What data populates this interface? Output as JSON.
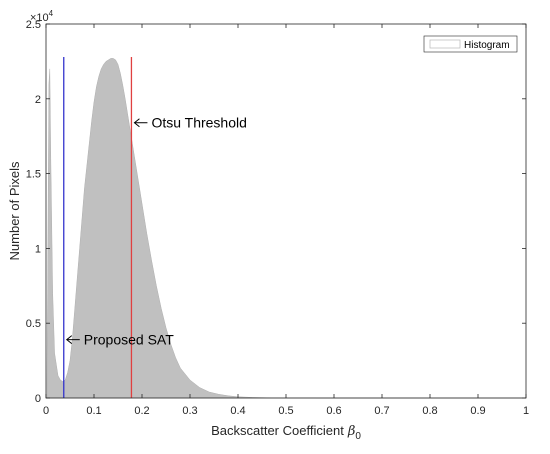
{
  "chart_data": {
    "type": "bar",
    "xlabel": "Backscatter Coefficient",
    "xlabel_symbol": "β",
    "xlabel_subscript": "0",
    "ylabel": "Number of Pixels",
    "y_exponent_base": "×10",
    "y_exponent_power": "4",
    "xlim": [
      0,
      1
    ],
    "ylim": [
      0,
      25000
    ],
    "x_ticks": [
      0,
      0.1,
      0.2,
      0.3,
      0.4,
      0.5,
      0.6,
      0.7,
      0.8,
      0.9,
      1
    ],
    "x_tick_labels": [
      "0",
      "0.1",
      "0.2",
      "0.3",
      "0.4",
      "0.5",
      "0.6",
      "0.7",
      "0.8",
      "0.9",
      "1"
    ],
    "y_ticks": [
      0,
      5000,
      10000,
      15000,
      20000,
      25000
    ],
    "y_tick_labels": [
      "0",
      "0.5",
      "1",
      "1.5",
      "2",
      "2.5"
    ],
    "grid": false,
    "legend_position": "top-right",
    "series": [
      {
        "name": "Histogram",
        "color": "#c0c0c0",
        "x": [
          0.002,
          0.006,
          0.008,
          0.01,
          0.014,
          0.018,
          0.025,
          0.03,
          0.035,
          0.04,
          0.045,
          0.05,
          0.055,
          0.06,
          0.065,
          0.07,
          0.075,
          0.08,
          0.085,
          0.09,
          0.095,
          0.1,
          0.105,
          0.11,
          0.115,
          0.12,
          0.125,
          0.13,
          0.135,
          0.14,
          0.145,
          0.15,
          0.155,
          0.16,
          0.165,
          0.17,
          0.175,
          0.18,
          0.19,
          0.2,
          0.21,
          0.22,
          0.23,
          0.24,
          0.25,
          0.26,
          0.27,
          0.28,
          0.3,
          0.32,
          0.34,
          0.36,
          0.38,
          0.4,
          0.43,
          0.46,
          0.5,
          0.55,
          0.6,
          0.7,
          0.8,
          1.0
        ],
        "values": [
          1000,
          21000,
          22000,
          16000,
          7000,
          3000,
          1500,
          1200,
          1100,
          1200,
          1700,
          2500,
          4000,
          6000,
          8000,
          10000,
          12000,
          14000,
          15500,
          17000,
          18500,
          19800,
          20800,
          21500,
          22000,
          22300,
          22500,
          22600,
          22700,
          22700,
          22600,
          22300,
          21700,
          20900,
          20000,
          19000,
          18000,
          17000,
          15000,
          13000,
          11000,
          9200,
          7500,
          6000,
          4700,
          3600,
          2700,
          2000,
          1200,
          700,
          400,
          250,
          150,
          80,
          40,
          20,
          10,
          5,
          3,
          1,
          0,
          0
        ]
      }
    ],
    "vertical_lines": [
      {
        "name": "Proposed SAT",
        "x": 0.037,
        "color": "#3333cc"
      },
      {
        "name": "Otsu Threshold",
        "x": 0.178,
        "color": "#e04040"
      }
    ],
    "annotations": [
      {
        "text": "Otsu Threshold",
        "x": 0.178,
        "y": 18400
      },
      {
        "text": "Proposed SAT",
        "x": 0.037,
        "y": 3900
      }
    ]
  }
}
